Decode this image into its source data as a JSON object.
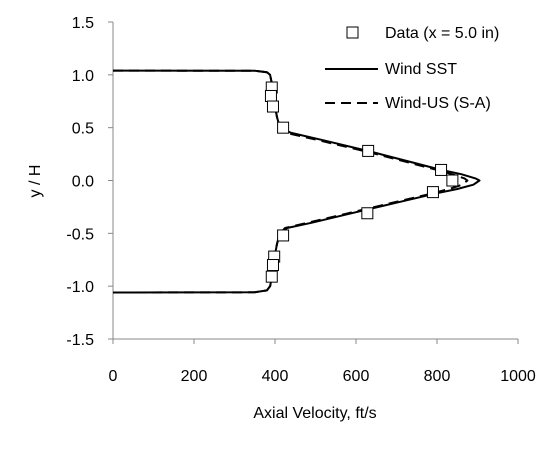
{
  "chart_data": {
    "type": "line",
    "xlabel": "Axial Velocity, ft/s",
    "ylabel": "y / H",
    "xlim": [
      0,
      1000
    ],
    "ylim": [
      -1.5,
      1.5
    ],
    "x_ticks": [
      0,
      200,
      400,
      600,
      800,
      1000
    ],
    "x_tick_labels": [
      "0",
      "200",
      "400",
      "600",
      "800",
      "1000"
    ],
    "y_ticks": [
      1.5,
      1.0,
      0.5,
      0.0,
      -0.5,
      -1.0,
      -1.5
    ],
    "y_tick_labels": [
      "1.5",
      "1.0",
      "0.5",
      "0.0",
      "-0.5",
      "-1.0",
      "-1.5"
    ],
    "grid": false,
    "legend_position": "top-right",
    "series": [
      {
        "name": "Data (x = 5.0 in)",
        "style": "markers",
        "marker": "square",
        "points": [
          [
            392,
            0.88
          ],
          [
            390,
            0.8
          ],
          [
            395,
            0.7
          ],
          [
            420,
            0.5
          ],
          [
            630,
            0.28
          ],
          [
            810,
            0.1
          ],
          [
            838,
            0.0
          ],
          [
            790,
            -0.11
          ],
          [
            628,
            -0.31
          ],
          [
            420,
            -0.52
          ],
          [
            398,
            -0.72
          ],
          [
            395,
            -0.8
          ],
          [
            392,
            -0.91
          ]
        ]
      },
      {
        "name": "Wind SST",
        "style": "solid",
        "points": [
          [
            0,
            1.04
          ],
          [
            350,
            1.038
          ],
          [
            380,
            1.025
          ],
          [
            388,
            1.0
          ],
          [
            392,
            0.92
          ],
          [
            396,
            0.8
          ],
          [
            400,
            0.7
          ],
          [
            405,
            0.6
          ],
          [
            412,
            0.5
          ],
          [
            440,
            0.45
          ],
          [
            520,
            0.38
          ],
          [
            640,
            0.27
          ],
          [
            740,
            0.17
          ],
          [
            810,
            0.1
          ],
          [
            860,
            0.06
          ],
          [
            895,
            0.02
          ],
          [
            905,
            0.0
          ],
          [
            890,
            -0.04
          ],
          [
            850,
            -0.08
          ],
          [
            800,
            -0.12
          ],
          [
            700,
            -0.21
          ],
          [
            600,
            -0.3
          ],
          [
            490,
            -0.4
          ],
          [
            430,
            -0.45
          ],
          [
            412,
            -0.5
          ],
          [
            405,
            -0.6
          ],
          [
            400,
            -0.7
          ],
          [
            396,
            -0.8
          ],
          [
            392,
            -0.92
          ],
          [
            388,
            -1.0
          ],
          [
            380,
            -1.04
          ],
          [
            350,
            -1.058
          ],
          [
            0,
            -1.06
          ]
        ]
      },
      {
        "name": "Wind-US (S-A)",
        "style": "dashed",
        "points": [
          [
            0,
            1.04
          ],
          [
            350,
            1.038
          ],
          [
            380,
            1.025
          ],
          [
            388,
            1.0
          ],
          [
            392,
            0.92
          ],
          [
            396,
            0.8
          ],
          [
            400,
            0.7
          ],
          [
            405,
            0.6
          ],
          [
            412,
            0.5
          ],
          [
            440,
            0.44
          ],
          [
            520,
            0.37
          ],
          [
            640,
            0.26
          ],
          [
            740,
            0.16
          ],
          [
            810,
            0.09
          ],
          [
            845,
            0.05
          ],
          [
            868,
            0.02
          ],
          [
            875,
            0.0
          ],
          [
            862,
            -0.04
          ],
          [
            830,
            -0.08
          ],
          [
            780,
            -0.13
          ],
          [
            680,
            -0.22
          ],
          [
            580,
            -0.31
          ],
          [
            480,
            -0.4
          ],
          [
            425,
            -0.45
          ],
          [
            412,
            -0.5
          ],
          [
            405,
            -0.6
          ],
          [
            400,
            -0.7
          ],
          [
            396,
            -0.8
          ],
          [
            392,
            -0.92
          ],
          [
            388,
            -1.0
          ],
          [
            380,
            -1.04
          ],
          [
            350,
            -1.058
          ],
          [
            0,
            -1.06
          ]
        ]
      }
    ]
  }
}
